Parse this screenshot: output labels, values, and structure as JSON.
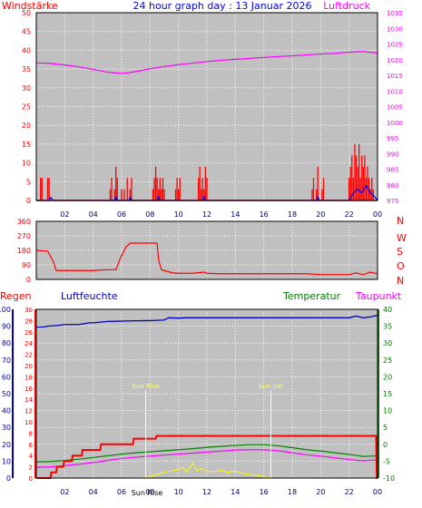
{
  "title": "24 hour graph day : 13 Januar 2026",
  "colors": {
    "background": "#ffffff",
    "plot_bg": "#c0c0c0",
    "grid": "#ffffff",
    "frame": "#000000",
    "wind": "#ff0000",
    "gust": "#0000ff",
    "pressure": "#ff00ff",
    "direction": "#ff0000",
    "dir_letters": "#ff0000",
    "rain": "#ff0000",
    "humidity": "#0000c0",
    "temperature": "#008000",
    "dewpoint": "#ff00ff",
    "solar": "#ffff00",
    "solar_label": "#ffff66",
    "humidity_axis": "#0000c0",
    "rain_axis": "#ff0000",
    "temp_axis": "#008000"
  },
  "chart_data": [
    {
      "type": "line",
      "id": "wind-pressure",
      "labels": {
        "left": "Windstärke",
        "right": "Luftdruck"
      },
      "x_ticks": [
        "02",
        "04",
        "06",
        "08",
        "10",
        "12",
        "14",
        "16",
        "18",
        "20",
        "22",
        "00"
      ],
      "ylim_left": [
        0,
        50
      ],
      "yticks_left": [
        0,
        5,
        10,
        15,
        20,
        25,
        30,
        35,
        40,
        45,
        50
      ],
      "ylim_right": [
        975,
        1035
      ],
      "yticks_right": [
        975,
        980,
        985,
        990,
        995,
        1000,
        1005,
        1010,
        1015,
        1020,
        1025,
        1030,
        1035
      ],
      "grid": true,
      "series": [
        {
          "key": "pressure",
          "axis": "right",
          "x": [
            0,
            1,
            2,
            3,
            4,
            5,
            5.5,
            6,
            6.5,
            7,
            8,
            9,
            10,
            11,
            12,
            13,
            14,
            15,
            16,
            17,
            18,
            19,
            20,
            21,
            22,
            23,
            24
          ],
          "y": [
            1019,
            1018.8,
            1018.3,
            1017.7,
            1016.9,
            1016,
            1015.8,
            1015.6,
            1015.8,
            1016.2,
            1017.1,
            1017.8,
            1018.4,
            1018.9,
            1019.4,
            1019.8,
            1020.1,
            1020.4,
            1020.7,
            1021,
            1021.2,
            1021.5,
            1021.8,
            1022,
            1022.4,
            1022.6,
            1022.1
          ]
        },
        {
          "key": "wind",
          "axis": "left",
          "style": "bars",
          "x": [
            0.3,
            0.4,
            0.8,
            0.9,
            5.2,
            5.3,
            5.5,
            5.6,
            5.7,
            6.0,
            6.2,
            6.4,
            6.6,
            6.7,
            8.2,
            8.3,
            8.4,
            8.5,
            8.6,
            8.7,
            8.8,
            8.9,
            9.0,
            9.8,
            9.9,
            10.0,
            10.1,
            11.4,
            11.5,
            11.6,
            11.7,
            11.8,
            11.9,
            12.0,
            19.4,
            19.5,
            19.7,
            19.8,
            20.1,
            20.2,
            22.0,
            22.1,
            22.2,
            22.3,
            22.4,
            22.5,
            22.6,
            22.7,
            22.8,
            22.9,
            23.0,
            23.1,
            23.2,
            23.3,
            23.4,
            23.5,
            23.6,
            23.7
          ],
          "y": [
            6,
            6,
            6,
            6,
            3,
            6,
            3,
            9,
            6,
            3,
            3,
            6,
            3,
            6,
            3,
            6,
            9,
            6,
            3,
            6,
            3,
            6,
            3,
            3,
            6,
            3,
            6,
            6,
            9,
            3,
            6,
            3,
            9,
            6,
            3,
            6,
            3,
            9,
            3,
            6,
            6,
            9,
            12,
            6,
            15,
            12,
            9,
            15,
            6,
            12,
            9,
            12,
            6,
            9,
            6,
            3,
            6,
            3
          ]
        },
        {
          "key": "gust",
          "axis": "left",
          "x": [
            0,
            0.9,
            1.0,
            1.1,
            1.2,
            5.5,
            5.6,
            5.7,
            6.5,
            6.6,
            6.7,
            8.5,
            8.6,
            8.7,
            11.7,
            11.8,
            11.9,
            19.7,
            19.8,
            19.9,
            22.0,
            22.3,
            22.6,
            22.9,
            23.2,
            23.5,
            23.8,
            24
          ],
          "y": [
            0,
            0,
            0.8,
            0.4,
            0,
            0,
            1,
            0,
            0,
            0.8,
            0,
            0,
            1,
            0,
            0,
            1,
            0,
            0,
            1,
            0,
            0,
            2,
            3,
            2,
            4,
            2,
            1,
            0
          ]
        }
      ]
    },
    {
      "type": "line",
      "id": "wind-direction",
      "labels": {
        "left": "",
        "right": ""
      },
      "ylim_left": [
        0,
        360
      ],
      "yticks_left": [
        0,
        90,
        180,
        270,
        360
      ],
      "grid": true,
      "direction_letters": [
        "N",
        "W",
        "S",
        "O",
        "N"
      ],
      "series": [
        {
          "key": "direction",
          "axis": "left",
          "x": [
            0,
            0.8,
            1.2,
            1.4,
            2,
            3,
            4,
            5,
            5.6,
            5.9,
            6.3,
            6.6,
            7,
            7.5,
            8,
            8.5,
            8.6,
            8.8,
            9.2,
            9.6,
            10,
            11,
            11.8,
            12,
            13,
            14,
            15,
            16,
            17,
            18,
            19,
            20,
            21,
            22,
            22.5,
            23,
            23.5,
            24
          ],
          "y": [
            180,
            175,
            110,
            55,
            55,
            55,
            55,
            60,
            60,
            130,
            200,
            225,
            225,
            225,
            225,
            225,
            120,
            60,
            50,
            40,
            38,
            38,
            45,
            38,
            35,
            35,
            35,
            35,
            35,
            35,
            35,
            30,
            30,
            30,
            40,
            30,
            45,
            35
          ]
        }
      ]
    },
    {
      "type": "line",
      "id": "humidity-temp-rain",
      "labels": {
        "rain": "Regen",
        "humidity": "Luftfeuchte",
        "temperature": "Temperatur",
        "dewpoint": "Taupunkt"
      },
      "x_ticks": [
        "02",
        "04",
        "06",
        "08",
        "10",
        "12",
        "14",
        "16",
        "18",
        "20",
        "22",
        "00"
      ],
      "ylim_humidity": [
        0,
        100
      ],
      "yticks_humidity": [
        0,
        10,
        20,
        30,
        40,
        50,
        60,
        70,
        80,
        90,
        100
      ],
      "ylim_rain": [
        0,
        30
      ],
      "yticks_rain": [
        0,
        2,
        4,
        6,
        8,
        10,
        12,
        14,
        16,
        18,
        20,
        22,
        24,
        26,
        28,
        30
      ],
      "ylim_temp": [
        -10,
        40
      ],
      "yticks_temp": [
        -10,
        -5,
        0,
        5,
        10,
        15,
        20,
        25,
        30,
        35,
        40
      ],
      "grid": true,
      "sun_annotations": [
        {
          "text": "Sun Rise",
          "x": 7.7,
          "label_y": 16
        },
        {
          "text": "Sun Set",
          "x": 16.5,
          "label_y": 16
        }
      ],
      "extra_labels": [
        "Sun Rise"
      ],
      "series": [
        {
          "key": "humidity",
          "axis": "humidity",
          "x": [
            0,
            0.5,
            1,
            1.6,
            2,
            3,
            3.7,
            4,
            5,
            6,
            7,
            8,
            9,
            9.3,
            10,
            10.5,
            11,
            12,
            13,
            14,
            15,
            16,
            17,
            18,
            19,
            20,
            21,
            22,
            22.5,
            23,
            23.5,
            24
          ],
          "y": [
            89.5,
            89.6,
            90.2,
            90.5,
            91,
            91,
            92,
            92,
            92.8,
            93,
            93.2,
            93.3,
            93.7,
            95,
            94.8,
            95,
            95,
            95,
            95,
            95,
            95,
            95,
            95,
            95,
            95,
            95,
            95,
            95,
            96,
            95,
            95.5,
            96.5
          ]
        },
        {
          "key": "temperature",
          "axis": "temp",
          "x": [
            0,
            1,
            2,
            3,
            4,
            5,
            6,
            7,
            8,
            9,
            10,
            11,
            12,
            13,
            14,
            15,
            16,
            17,
            18,
            19,
            20,
            21,
            22,
            23,
            24
          ],
          "y": [
            -5.2,
            -5.1,
            -4.8,
            -4.4,
            -3.9,
            -3.4,
            -2.9,
            -2.5,
            -2.2,
            -1.9,
            -1.6,
            -1.3,
            -0.9,
            -0.6,
            -0.3,
            -0.1,
            -0.1,
            -0.4,
            -1,
            -1.6,
            -2,
            -2.5,
            -3,
            -3.6,
            -3.4
          ]
        },
        {
          "key": "dewpoint",
          "axis": "temp",
          "x": [
            0,
            1,
            2,
            3,
            4,
            5,
            6,
            7,
            8,
            9,
            10,
            11,
            12,
            13,
            14,
            15,
            16,
            17,
            18,
            19,
            20,
            21,
            22,
            23,
            24
          ],
          "y": [
            -6.8,
            -6.7,
            -6.3,
            -5.9,
            -5.4,
            -4.8,
            -4.2,
            -3.8,
            -3.5,
            -3.2,
            -2.9,
            -2.6,
            -2.3,
            -2,
            -1.7,
            -1.6,
            -1.6,
            -1.9,
            -2.5,
            -3.1,
            -3.5,
            -4,
            -4.5,
            -4.9,
            -4.6
          ]
        },
        {
          "key": "rain",
          "axis": "rain",
          "style": "step",
          "x": [
            0,
            1.0,
            1.05,
            1.4,
            1.45,
            1.9,
            1.95,
            2.5,
            2.55,
            3.2,
            3.25,
            4.5,
            4.55,
            6.8,
            6.85,
            8.4,
            8.45,
            12,
            23.9,
            23.95,
            24
          ],
          "y": [
            0,
            0,
            1,
            1,
            2,
            2,
            3,
            3,
            4,
            4,
            5,
            5,
            6,
            6,
            7,
            7,
            7.5,
            7.5,
            7.5,
            0,
            0
          ]
        },
        {
          "key": "solar",
          "axis": "temp",
          "x": [
            0,
            7.5,
            8,
            8.5,
            9,
            9.5,
            10,
            10.3,
            10.6,
            11,
            11.3,
            11.6,
            12,
            12.5,
            13,
            13.5,
            14,
            14.5,
            15,
            15.5,
            16,
            16.5,
            24
          ],
          "y": [
            -10,
            -10,
            -9.6,
            -9,
            -8.3,
            -7.9,
            -7.6,
            -6.8,
            -8.2,
            -5.6,
            -7.8,
            -7.2,
            -7.9,
            -8.1,
            -7.7,
            -8.3,
            -7.9,
            -8.6,
            -8.9,
            -9.2,
            -9.6,
            -10,
            -10
          ]
        }
      ]
    }
  ]
}
